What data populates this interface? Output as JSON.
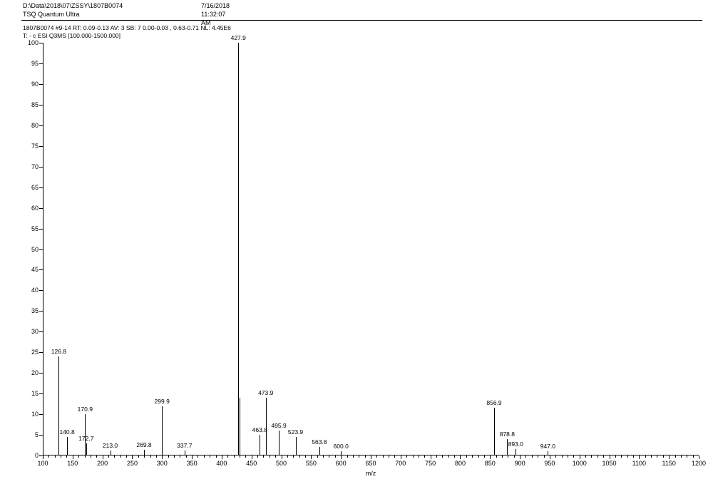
{
  "header": {
    "path": "D:\\Data\\2018\\07\\ZSSY\\1807B0074",
    "instrument": "TSQ Quantum Ultra",
    "timestamp": "7/16/2018 11:32:07 AM"
  },
  "subheader": {
    "line1": "1807B0074 #9-14  RT: 0.09-0.13  AV: 3  SB: 7 0.00-0.03 , 0.63-0.71  NL: 4.45E6",
    "line2": "T: - c ESI Q3MS [100.000-1500.000]"
  },
  "chart": {
    "type": "mass-spectrum",
    "background_color": "#ffffff",
    "axis_color": "#000000",
    "peak_color": "#000000",
    "label_color": "#000000",
    "font_family": "Arial",
    "label_fontsize": 9,
    "peak_label_fontsize": 8.5,
    "x": {
      "min": 100,
      "max": 1200,
      "tick_step": 50,
      "title": "m/z"
    },
    "y": {
      "min": 0,
      "max": 100,
      "tick_step": 5
    },
    "peaks": [
      {
        "mz": 126.8,
        "intensity": 24.0,
        "label": "126.8"
      },
      {
        "mz": 140.8,
        "intensity": 4.5,
        "label": "140.8"
      },
      {
        "mz": 170.9,
        "intensity": 10.0,
        "label": "170.9"
      },
      {
        "mz": 172.7,
        "intensity": 3.0,
        "label": "172.7"
      },
      {
        "mz": 213.0,
        "intensity": 1.2,
        "label": "213.0"
      },
      {
        "mz": 269.8,
        "intensity": 1.4,
        "label": "269.8"
      },
      {
        "mz": 299.9,
        "intensity": 12.0,
        "label": "299.9"
      },
      {
        "mz": 337.7,
        "intensity": 1.2,
        "label": "337.7"
      },
      {
        "mz": 427.9,
        "intensity": 100.0,
        "label": "427.9"
      },
      {
        "mz": 429.9,
        "intensity": 14.0,
        "label": ""
      },
      {
        "mz": 463.8,
        "intensity": 5.0,
        "label": "463.8"
      },
      {
        "mz": 473.9,
        "intensity": 14.0,
        "label": "473.9"
      },
      {
        "mz": 495.9,
        "intensity": 6.0,
        "label": "495.9"
      },
      {
        "mz": 523.9,
        "intensity": 4.5,
        "label": "523.9"
      },
      {
        "mz": 563.8,
        "intensity": 2.0,
        "label": "563.8"
      },
      {
        "mz": 600.0,
        "intensity": 1.0,
        "label": "600.0"
      },
      {
        "mz": 856.9,
        "intensity": 11.5,
        "label": "856.9"
      },
      {
        "mz": 878.8,
        "intensity": 4.0,
        "label": "878.8"
      },
      {
        "mz": 893.0,
        "intensity": 1.5,
        "label": "893.0"
      },
      {
        "mz": 947.0,
        "intensity": 1.0,
        "label": "947.0"
      }
    ]
  }
}
